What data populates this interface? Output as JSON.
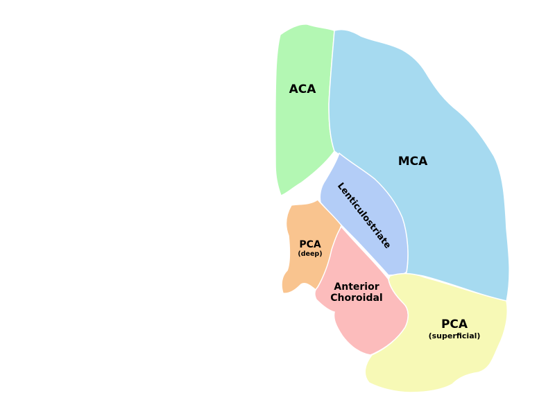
{
  "regions": {
    "aca": {
      "name": "ACA",
      "color": "#b3f7b3"
    },
    "mca": {
      "name": "MCA",
      "color": "#a6daf0"
    },
    "lenticulostriate": {
      "name": "Lenticulostriate",
      "color": "#b3cdf7"
    },
    "pca_deep": {
      "name": "PCA",
      "sub": "(deep)",
      "color": "#f9c48f"
    },
    "anterior_choroidal": {
      "name_line1": "Anterior",
      "name_line2": "Choroidal",
      "color": "#fcbcbc"
    },
    "pca_superficial": {
      "name": "PCA",
      "sub": "(superficial)",
      "color": "#f7f9b6"
    }
  }
}
